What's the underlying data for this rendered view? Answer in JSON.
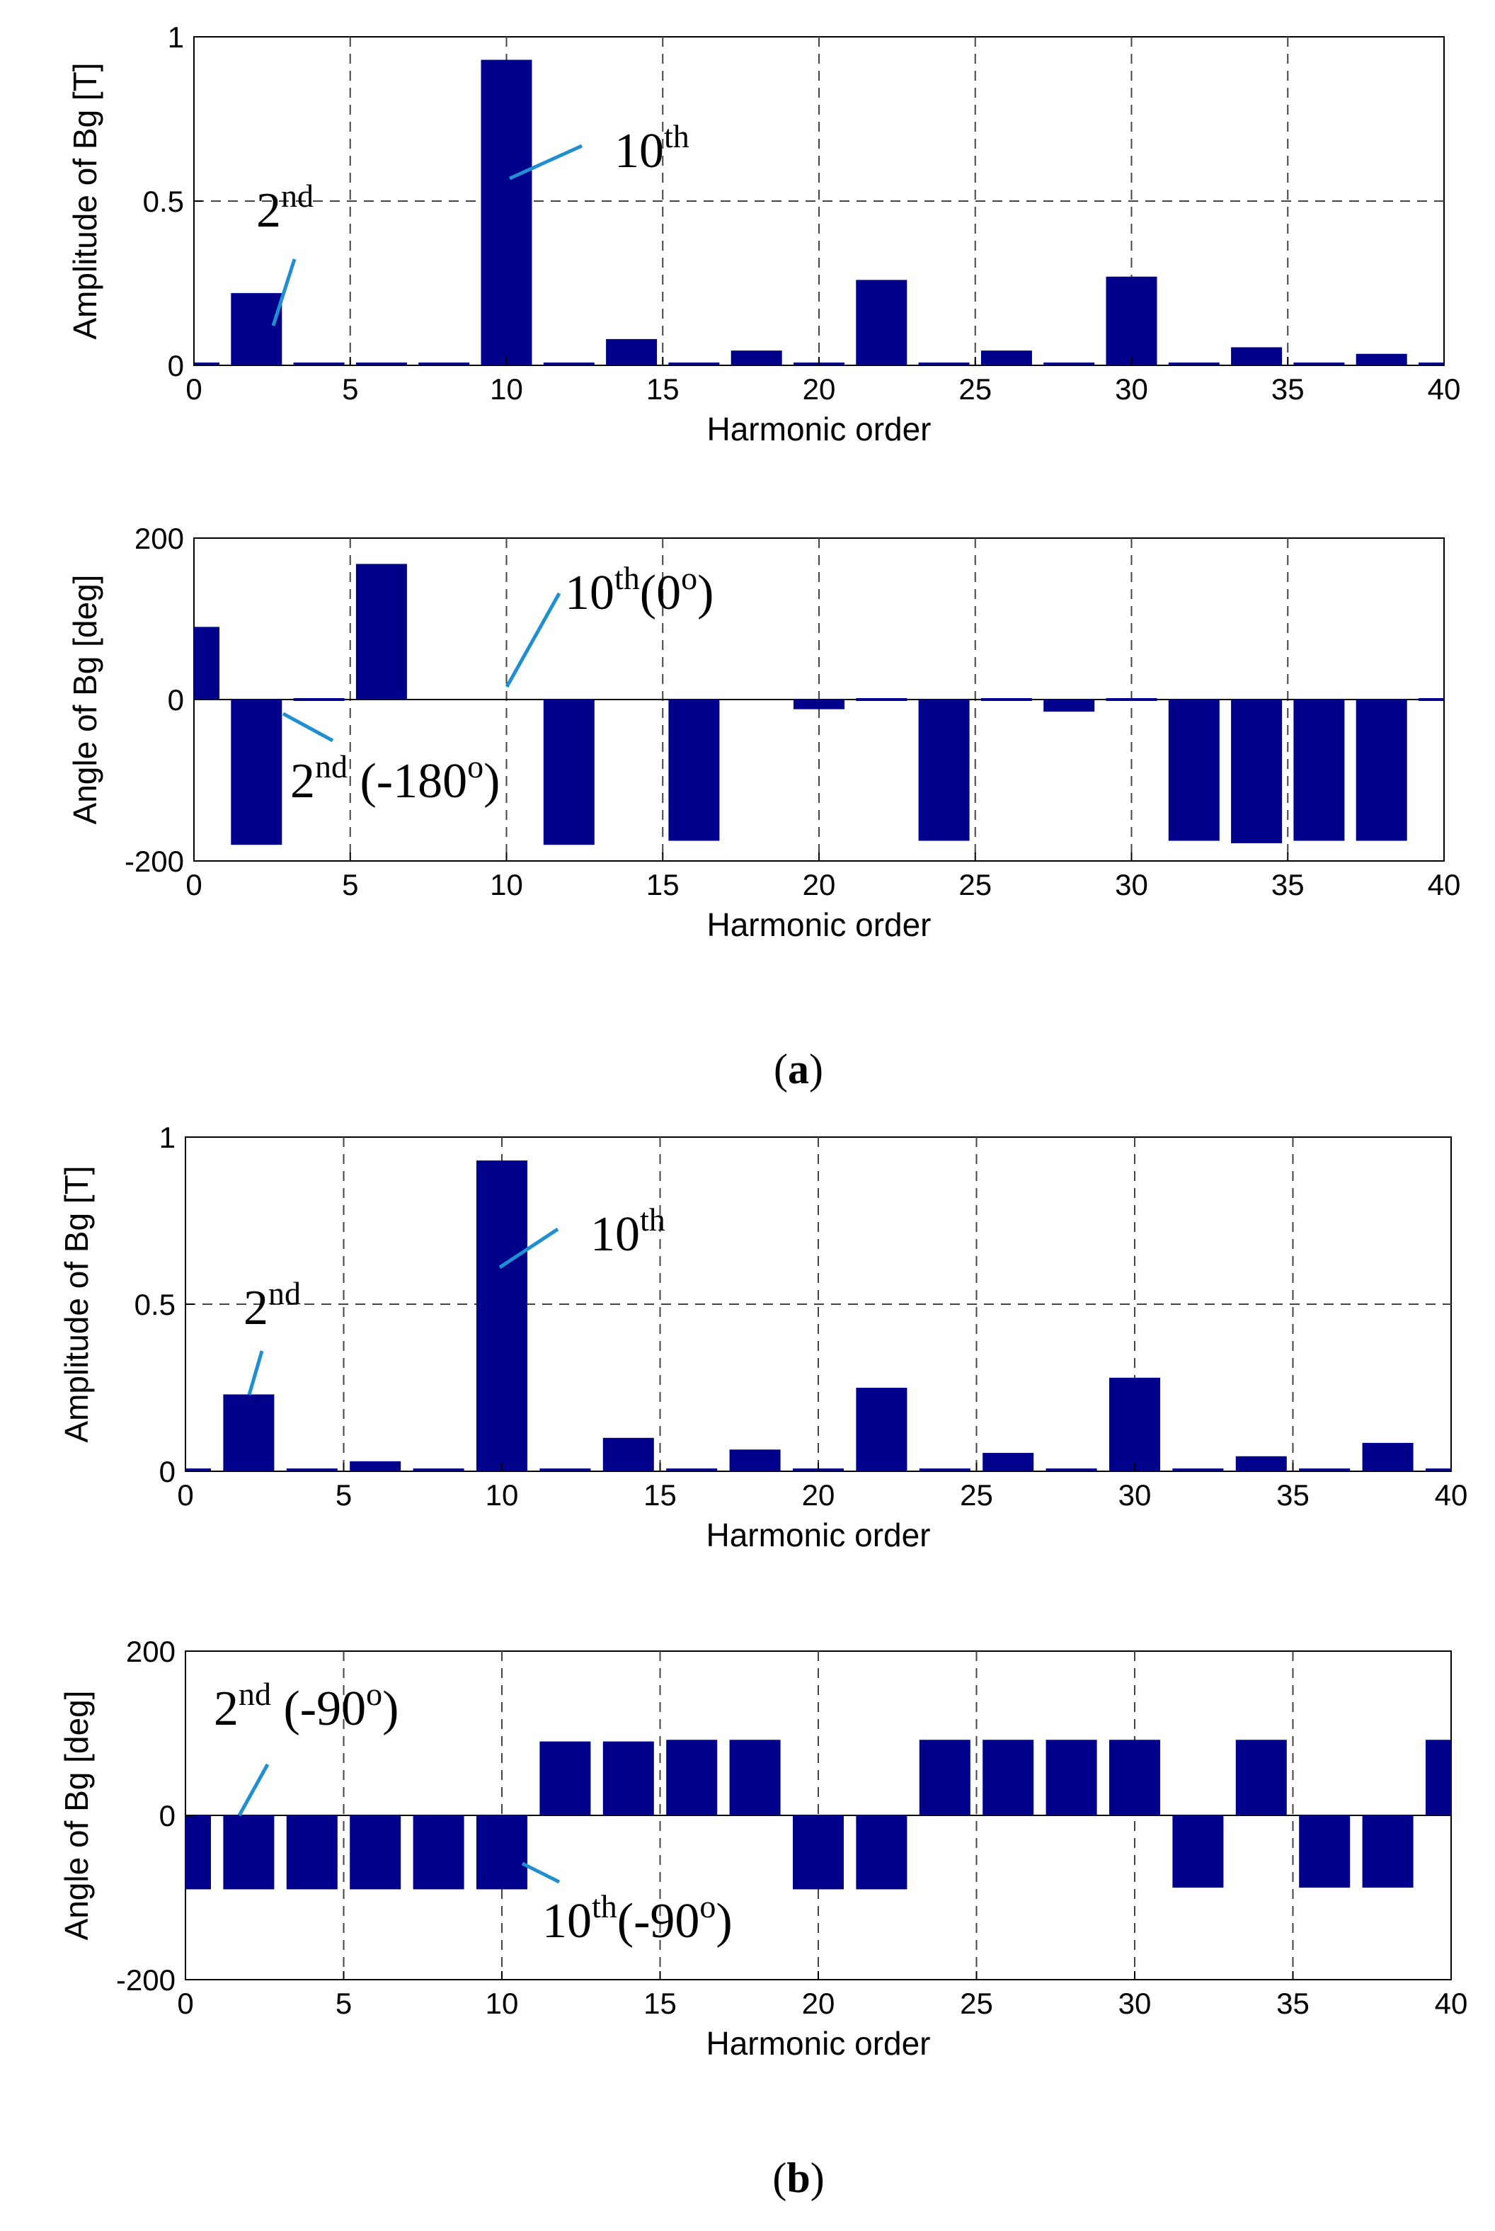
{
  "colors": {
    "bar": "#00008B",
    "annotation_line": "#1f8fcf",
    "axis": "#000000",
    "grid": "#444444"
  },
  "captions": {
    "a": {
      "open": "(",
      "label": "a",
      "close": ")"
    },
    "b": {
      "open": "(",
      "label": "b",
      "close": ")"
    }
  },
  "chart_data": [
    {
      "id": "a-amplitude",
      "type": "bar",
      "title": "",
      "xlabel": "Harmonic order",
      "ylabel": "Amplitude of Bg [T]",
      "xlim": [
        0,
        40
      ],
      "ylim": [
        0,
        1
      ],
      "xticks": [
        "0",
        "5",
        "10",
        "15",
        "20",
        "25",
        "30",
        "35",
        "40"
      ],
      "yticks": [
        "0",
        "0.5",
        "1"
      ],
      "grid": true,
      "x": [
        0,
        2,
        4,
        6,
        8,
        10,
        12,
        14,
        16,
        18,
        20,
        22,
        24,
        26,
        28,
        30,
        32,
        34,
        36,
        38,
        40
      ],
      "values": [
        0.005,
        0.22,
        0.005,
        0.005,
        0.005,
        0.93,
        0.005,
        0.08,
        0.005,
        0.045,
        0.005,
        0.26,
        0.005,
        0.045,
        0.005,
        0.27,
        0.005,
        0.055,
        0.005,
        0.035,
        0.005
      ],
      "annotations": [
        {
          "base": "2",
          "sup": "nd",
          "suffix": ""
        },
        {
          "base": "10",
          "sup": "th",
          "suffix": ""
        }
      ]
    },
    {
      "id": "a-angle",
      "type": "bar",
      "title": "",
      "xlabel": "Harmonic order",
      "ylabel": "Angle of Bg [deg]",
      "xlim": [
        0,
        40
      ],
      "ylim": [
        -200,
        200
      ],
      "xticks": [
        "0",
        "5",
        "10",
        "15",
        "20",
        "25",
        "30",
        "35",
        "40"
      ],
      "yticks": [
        "-200",
        "0",
        "200"
      ],
      "grid": true,
      "x": [
        0,
        2,
        4,
        6,
        8,
        10,
        12,
        14,
        16,
        18,
        20,
        22,
        24,
        26,
        28,
        30,
        32,
        34,
        36,
        38,
        40
      ],
      "values": [
        90,
        -180,
        2,
        168,
        0,
        0,
        -180,
        0,
        -175,
        0,
        -12,
        2,
        -175,
        2,
        -15,
        2,
        -175,
        -178,
        -175,
        -175,
        2
      ],
      "annotations": [
        {
          "base": "10",
          "sup": "th",
          "suffix": "(0",
          "sup2": "o",
          "suffix2": ")"
        },
        {
          "base": "2",
          "sup": "nd",
          "suffix": " (-180",
          "sup2": "o",
          "suffix2": ")"
        }
      ]
    },
    {
      "id": "b-amplitude",
      "type": "bar",
      "title": "",
      "xlabel": "Harmonic order",
      "ylabel": "Amplitude of Bg [T]",
      "xlim": [
        0,
        40
      ],
      "ylim": [
        0,
        1
      ],
      "xticks": [
        "0",
        "5",
        "10",
        "15",
        "20",
        "25",
        "30",
        "35",
        "40"
      ],
      "yticks": [
        "0",
        "0.5",
        "1"
      ],
      "grid": true,
      "x": [
        0,
        2,
        4,
        6,
        8,
        10,
        12,
        14,
        16,
        18,
        20,
        22,
        24,
        26,
        28,
        30,
        32,
        34,
        36,
        38,
        40
      ],
      "values": [
        0.005,
        0.23,
        0.005,
        0.03,
        0.005,
        0.93,
        0.005,
        0.1,
        0.005,
        0.065,
        0.005,
        0.25,
        0.005,
        0.055,
        0.005,
        0.28,
        0.005,
        0.045,
        0.005,
        0.085,
        0.005
      ],
      "annotations": [
        {
          "base": "2",
          "sup": "nd",
          "suffix": ""
        },
        {
          "base": "10",
          "sup": "th",
          "suffix": ""
        }
      ]
    },
    {
      "id": "b-angle",
      "type": "bar",
      "title": "",
      "xlabel": "Harmonic order",
      "ylabel": "Angle of Bg [deg]",
      "xlim": [
        0,
        40
      ],
      "ylim": [
        -200,
        200
      ],
      "xticks": [
        "0",
        "5",
        "10",
        "15",
        "20",
        "25",
        "30",
        "35",
        "40"
      ],
      "yticks": [
        "-200",
        "0",
        "200"
      ],
      "grid": true,
      "x": [
        0,
        2,
        4,
        6,
        8,
        10,
        12,
        14,
        16,
        18,
        20,
        22,
        24,
        26,
        28,
        30,
        32,
        34,
        36,
        38,
        40
      ],
      "values": [
        -90,
        -90,
        -90,
        -90,
        -90,
        -90,
        90,
        90,
        92,
        92,
        -90,
        -90,
        92,
        92,
        92,
        92,
        -88,
        92,
        -88,
        -88,
        92
      ],
      "annotations": [
        {
          "base": "2",
          "sup": "nd",
          "suffix": " (-90",
          "sup2": "o",
          "suffix2": ")"
        },
        {
          "base": "10",
          "sup": "th",
          "suffix": "(-90",
          "sup2": "o",
          "suffix2": ")"
        }
      ]
    }
  ]
}
